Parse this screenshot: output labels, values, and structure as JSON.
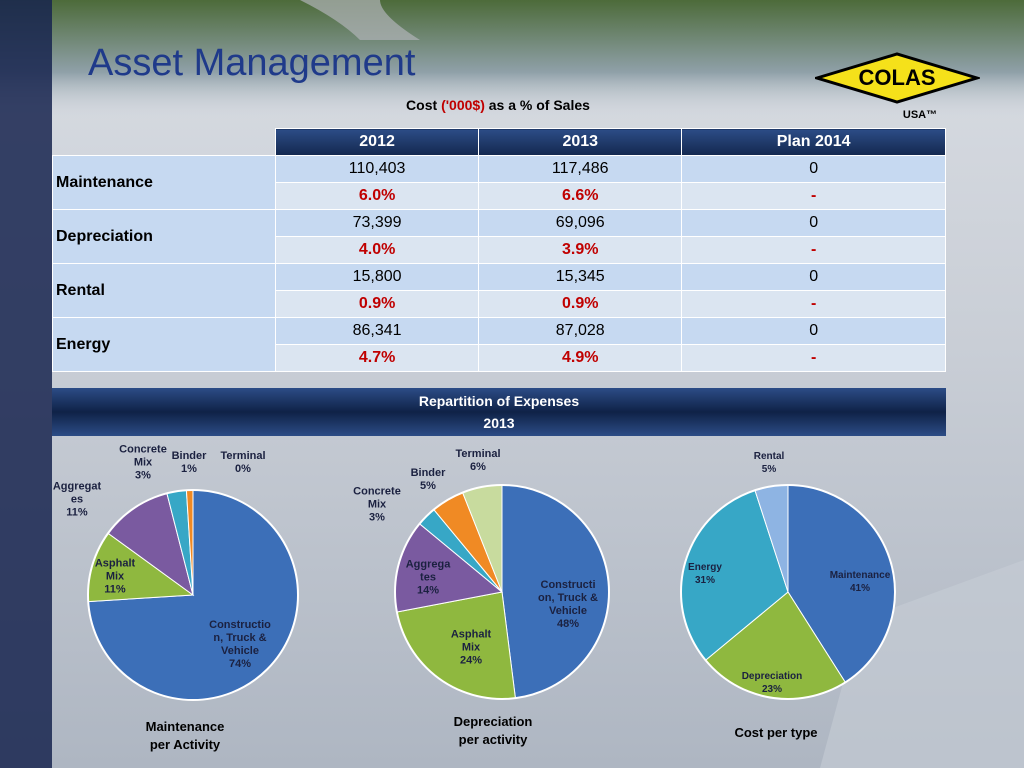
{
  "title": "Asset Management",
  "subtitle": {
    "before": "Cost",
    "highlight": "('000$)",
    "after": "as a % of Sales"
  },
  "logo": {
    "name": "COLAS",
    "country": "USA™"
  },
  "table": {
    "columns": [
      "2012",
      "2013",
      "Plan 2014"
    ],
    "rows": [
      {
        "label": "Maintenance",
        "amounts": [
          "110,403",
          "117,486",
          "0"
        ],
        "percents": [
          "6.0%",
          "6.6%",
          "-"
        ]
      },
      {
        "label": "Depreciation",
        "amounts": [
          "73,399",
          "69,096",
          "0"
        ],
        "percents": [
          "4.0%",
          "3.9%",
          "-"
        ]
      },
      {
        "label": "Rental",
        "amounts": [
          "15,800",
          "15,345",
          "0"
        ],
        "percents": [
          "0.9%",
          "0.9%",
          "-"
        ]
      },
      {
        "label": "Energy",
        "amounts": [
          "86,341",
          "87,028",
          "0"
        ],
        "percents": [
          "4.7%",
          "4.9%",
          "-"
        ]
      }
    ]
  },
  "banner": {
    "title": "Repartition of Expenses",
    "year": "2013"
  },
  "chart_data": [
    {
      "type": "pie",
      "title": "Maintenance per Activity",
      "categories": [
        "Construction, Truck & Vehicle",
        "Asphalt Mix",
        "Aggregates",
        "Concrete Mix",
        "Binder",
        "Terminal"
      ],
      "values": [
        74,
        11,
        11,
        3,
        1,
        0
      ],
      "value_labels": [
        "74%",
        "11%",
        "11%",
        "3%",
        "1%",
        "0%"
      ],
      "colors": [
        "#3c6fb8",
        "#8fb83f",
        "#7a5aa0",
        "#37a7c6",
        "#f08a24",
        "#c8db9e"
      ]
    },
    {
      "type": "pie",
      "title": "Depreciation per activity",
      "categories": [
        "Construction, Truck & Vehicle",
        "Asphalt Mix",
        "Aggregates",
        "Concrete Mix",
        "Binder",
        "Terminal"
      ],
      "values": [
        48,
        24,
        14,
        3,
        5,
        6
      ],
      "value_labels": [
        "48%",
        "24%",
        "14%",
        "3%",
        "5%",
        "6%"
      ],
      "colors": [
        "#3c6fb8",
        "#8fb83f",
        "#7a5aa0",
        "#37a7c6",
        "#f08a24",
        "#c8db9e"
      ]
    },
    {
      "type": "pie",
      "title": "Cost per type",
      "categories": [
        "Maintenance",
        "Depreciation",
        "Energy",
        "Rental"
      ],
      "values": [
        41,
        23,
        31,
        5
      ],
      "value_labels": [
        "41%",
        "23%",
        "31%",
        "5%"
      ],
      "colors": [
        "#3c6fb8",
        "#8fb83f",
        "#37a7c6",
        "#8eb4e3"
      ]
    }
  ]
}
